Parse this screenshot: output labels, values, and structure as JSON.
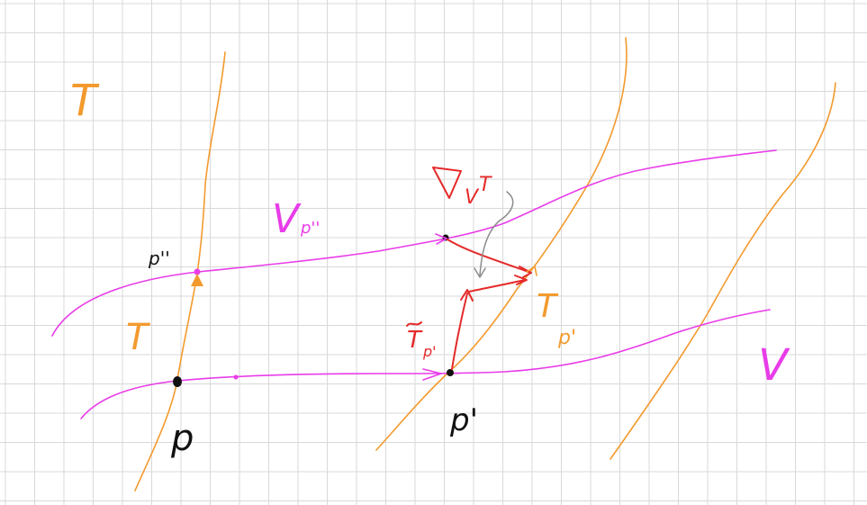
{
  "labels": {
    "T_top": "T",
    "T_mid": "T",
    "V_pp": "V",
    "V_pp_sub": "p''",
    "V_right": "V",
    "nabla": "∇",
    "nabla_sub": "V",
    "nabla_sup": "T",
    "T_tilde": "T",
    "T_tilde_sub": "p'",
    "T_p1": "T",
    "T_p1_sub": "p'",
    "p": "p",
    "p_prime": "p'",
    "p_double_prime": "p''"
  },
  "colors": {
    "grid": "#d9d9d9",
    "orange": "#f39a2e",
    "magenta": "#e83ce8",
    "red": "#e52a2a",
    "gray": "#8c8c8c",
    "black": "#111111"
  }
}
